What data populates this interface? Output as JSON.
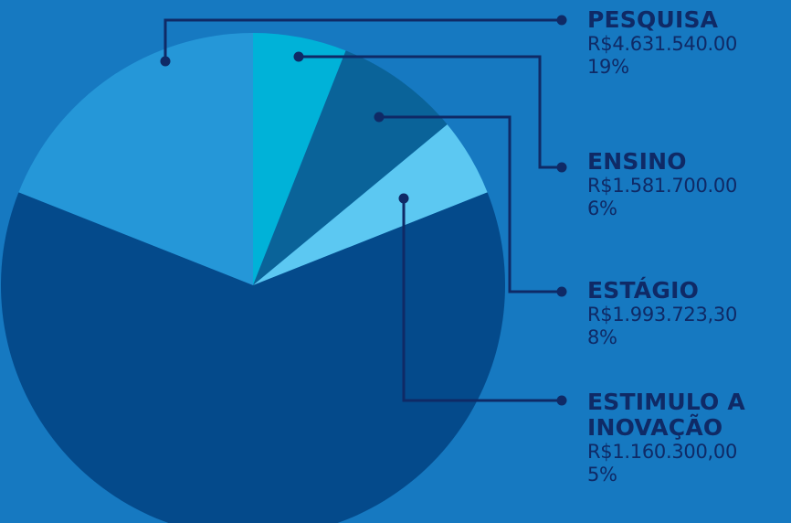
{
  "chart_data": {
    "type": "pie",
    "title": "",
    "slices": [
      {
        "label": "PESQUISA",
        "value_text": "R$4.631.540.00",
        "percent_text": "19%",
        "percent": 19,
        "color": "#2597d8"
      },
      {
        "label": "ENSINO",
        "value_text": "R$1.581.700.00",
        "percent_text": "6%",
        "percent": 6,
        "color": "#00b2d8"
      },
      {
        "label": "ESTÁGIO",
        "value_text": "R$1.993.723,30",
        "percent_text": "8%",
        "percent": 8,
        "color": "#0a6399"
      },
      {
        "label": "ESTIMULO A INOVAÇÃO",
        "value_text": "R$1.160.300,00",
        "percent_text": "5%",
        "percent": 5,
        "color": "#5cc8f2"
      },
      {
        "label": "",
        "value_text": "",
        "percent_text": "",
        "percent": 62,
        "color": "#044a8b"
      }
    ],
    "legend_position": "right",
    "colors": {
      "background": "#1679c1",
      "leader_line": "#0f2a66",
      "label_text": "#0f2a66"
    }
  }
}
